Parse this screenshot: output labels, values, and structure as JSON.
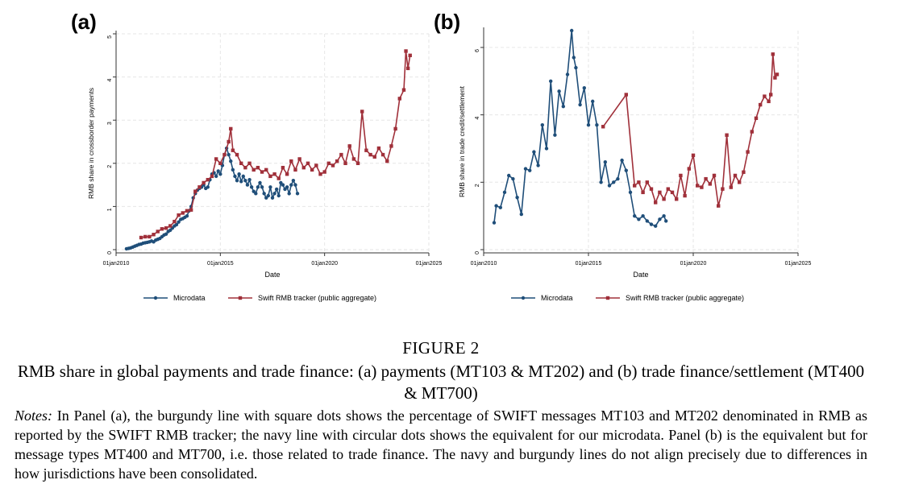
{
  "colors": {
    "microdata": "#1f4e79",
    "swift": "#a0303a"
  },
  "legend": {
    "microdata": "Microdata",
    "swift": "Swift RMB tracker (public aggregate)"
  },
  "x_axis": {
    "label": "Date",
    "ticks": [
      "01jan2010",
      "01jan2015",
      "01jan2020",
      "01jan2025"
    ]
  },
  "caption": {
    "figure_number": "FIGURE 2",
    "title": "RMB share in global payments and trade finance: (a) payments (MT103 & MT202) and (b) trade finance/settlement (MT400 & MT700)",
    "notes_label": "Notes:",
    "notes_text": " In Panel (a), the burgundy line with square dots shows the percentage of SWIFT messages MT103 and MT202 denominated in RMB as reported by the SWIFT RMB tracker; the navy line with circular dots shows the equivalent for our microdata. Panel (b) is the equivalent but for message types MT400 and MT700, i.e. those related to trade finance. The navy and burgundy lines do not align precisely due to differences in how jurisdictions have been consolidated."
  },
  "chart_data": [
    {
      "panel": "(a)",
      "type": "line",
      "xlabel": "Date",
      "ylabel": "RMB share in crossborder payments",
      "xlim": [
        2010,
        2025
      ],
      "ylim": [
        0,
        5
      ],
      "yticks": [
        0,
        1,
        2,
        3,
        4,
        5
      ],
      "xticks": [
        "01jan2010",
        "01jan2015",
        "01jan2020",
        "01jan2025"
      ],
      "grid": true,
      "legend_position": "bottom",
      "series": [
        {
          "name": "Microdata",
          "marker": "circle",
          "x": [
            2010.5,
            2010.6,
            2010.7,
            2010.8,
            2010.9,
            2011.0,
            2011.1,
            2011.2,
            2011.3,
            2011.4,
            2011.5,
            2011.6,
            2011.7,
            2011.8,
            2011.9,
            2012.0,
            2012.1,
            2012.2,
            2012.3,
            2012.4,
            2012.5,
            2012.6,
            2012.7,
            2012.8,
            2012.9,
            2013.0,
            2013.1,
            2013.2,
            2013.3,
            2013.4,
            2013.5,
            2013.6,
            2013.7,
            2013.8,
            2013.9,
            2014.0,
            2014.1,
            2014.2,
            2014.3,
            2014.4,
            2014.5,
            2014.6,
            2014.7,
            2014.8,
            2014.9,
            2015.0,
            2015.1,
            2015.2,
            2015.3,
            2015.4,
            2015.5,
            2015.6,
            2015.7,
            2015.8,
            2015.9,
            2016.0,
            2016.1,
            2016.2,
            2016.3,
            2016.4,
            2016.5,
            2016.6,
            2016.7,
            2016.8,
            2016.9,
            2017.0,
            2017.1,
            2017.2,
            2017.3,
            2017.4,
            2017.5,
            2017.6,
            2017.7,
            2017.8,
            2017.9,
            2018.0,
            2018.1,
            2018.2,
            2018.3,
            2018.4,
            2018.5,
            2018.6,
            2018.7
          ],
          "values": [
            0.02,
            0.03,
            0.04,
            0.06,
            0.08,
            0.1,
            0.12,
            0.13,
            0.15,
            0.16,
            0.17,
            0.18,
            0.2,
            0.18,
            0.22,
            0.24,
            0.26,
            0.3,
            0.34,
            0.36,
            0.42,
            0.45,
            0.5,
            0.55,
            0.58,
            0.64,
            0.7,
            0.72,
            0.75,
            0.78,
            0.9,
            1.0,
            1.2,
            1.3,
            1.38,
            1.42,
            1.45,
            1.5,
            1.42,
            1.45,
            1.62,
            1.75,
            1.78,
            1.7,
            1.82,
            1.75,
            1.95,
            2.2,
            2.35,
            2.2,
            2.05,
            1.85,
            1.7,
            1.6,
            1.75,
            1.58,
            1.7,
            1.6,
            1.5,
            1.62,
            1.45,
            1.35,
            1.3,
            1.45,
            1.55,
            1.45,
            1.3,
            1.2,
            1.25,
            1.45,
            1.2,
            1.3,
            1.4,
            1.25,
            1.55,
            1.5,
            1.4,
            1.45,
            1.3,
            1.5,
            1.6,
            1.5,
            1.3
          ]
        },
        {
          "name": "Swift RMB tracker (public aggregate)",
          "marker": "square",
          "x": [
            2011.2,
            2011.4,
            2011.6,
            2011.8,
            2012.0,
            2012.2,
            2012.4,
            2012.6,
            2012.8,
            2013.0,
            2013.2,
            2013.4,
            2013.6,
            2013.8,
            2014.0,
            2014.2,
            2014.4,
            2014.6,
            2014.8,
            2015.0,
            2015.2,
            2015.4,
            2015.5,
            2015.6,
            2015.8,
            2016.0,
            2016.2,
            2016.4,
            2016.6,
            2016.8,
            2017.0,
            2017.2,
            2017.4,
            2017.6,
            2017.8,
            2018.0,
            2018.2,
            2018.4,
            2018.6,
            2018.8,
            2019.0,
            2019.2,
            2019.4,
            2019.6,
            2019.8,
            2020.0,
            2020.2,
            2020.4,
            2020.6,
            2020.8,
            2021.0,
            2021.2,
            2021.4,
            2021.6,
            2021.8,
            2022.0,
            2022.2,
            2022.4,
            2022.6,
            2022.8,
            2023.0,
            2023.2,
            2023.4,
            2023.6,
            2023.8,
            2023.9,
            2024.0,
            2024.1
          ],
          "values": [
            0.28,
            0.3,
            0.3,
            0.35,
            0.42,
            0.48,
            0.5,
            0.55,
            0.65,
            0.8,
            0.85,
            0.9,
            0.92,
            1.35,
            1.45,
            1.55,
            1.62,
            1.7,
            2.1,
            2.0,
            2.2,
            2.5,
            2.8,
            2.3,
            2.2,
            2.0,
            1.9,
            2.0,
            1.85,
            1.9,
            1.8,
            1.85,
            1.7,
            1.75,
            1.65,
            1.9,
            1.75,
            2.05,
            1.85,
            2.1,
            1.9,
            2.0,
            1.85,
            1.95,
            1.75,
            1.8,
            2.0,
            1.95,
            2.05,
            2.2,
            2.0,
            2.4,
            2.1,
            2.0,
            3.2,
            2.3,
            2.2,
            2.15,
            2.35,
            2.2,
            2.05,
            2.4,
            2.8,
            3.5,
            3.7,
            4.6,
            4.2,
            4.5
          ]
        }
      ]
    },
    {
      "panel": "(b)",
      "type": "line",
      "xlabel": "Date",
      "ylabel": "RMB share in trade credit/settlement",
      "xlim": [
        2010,
        2025
      ],
      "ylim": [
        0,
        6.5
      ],
      "yticks": [
        0,
        2,
        4,
        6
      ],
      "xticks": [
        "01jan2010",
        "01jan2015",
        "01jan2020",
        "01jan2025"
      ],
      "grid": true,
      "legend_position": "bottom",
      "series": [
        {
          "name": "Microdata",
          "marker": "circle",
          "x": [
            2010.5,
            2010.6,
            2010.8,
            2011.0,
            2011.2,
            2011.4,
            2011.6,
            2011.8,
            2012.0,
            2012.2,
            2012.4,
            2012.6,
            2012.8,
            2013.0,
            2013.2,
            2013.4,
            2013.6,
            2013.8,
            2014.0,
            2014.2,
            2014.3,
            2014.4,
            2014.6,
            2014.8,
            2015.0,
            2015.2,
            2015.4,
            2015.6,
            2015.8,
            2016.0,
            2016.2,
            2016.4,
            2016.6,
            2016.8,
            2017.0,
            2017.2,
            2017.4,
            2017.6,
            2017.8,
            2018.0,
            2018.2,
            2018.4,
            2018.6,
            2018.7
          ],
          "values": [
            0.8,
            1.3,
            1.25,
            1.7,
            2.2,
            2.1,
            1.55,
            1.05,
            2.4,
            2.35,
            2.9,
            2.5,
            3.7,
            3.0,
            5.0,
            3.4,
            4.7,
            4.25,
            5.2,
            6.5,
            5.7,
            5.4,
            4.3,
            4.8,
            3.7,
            4.4,
            3.7,
            2.0,
            2.6,
            1.9,
            2.0,
            2.1,
            2.65,
            2.35,
            1.7,
            1.0,
            0.9,
            1.0,
            0.85,
            0.75,
            0.7,
            0.9,
            1.0,
            0.85
          ]
        },
        {
          "name": "Swift RMB tracker (public aggregate)",
          "marker": "square",
          "x": [
            2015.7,
            2016.8,
            2017.2,
            2017.4,
            2017.6,
            2017.8,
            2018.0,
            2018.2,
            2018.4,
            2018.6,
            2018.8,
            2019.0,
            2019.2,
            2019.4,
            2019.6,
            2019.8,
            2020.0,
            2020.2,
            2020.4,
            2020.6,
            2020.8,
            2021.0,
            2021.2,
            2021.4,
            2021.6,
            2021.8,
            2022.0,
            2022.2,
            2022.4,
            2022.6,
            2022.8,
            2023.0,
            2023.2,
            2023.4,
            2023.6,
            2023.7,
            2023.8,
            2023.9,
            2024.0
          ],
          "values": [
            3.65,
            4.6,
            1.9,
            2.0,
            1.7,
            2.0,
            1.8,
            1.4,
            1.7,
            1.5,
            1.8,
            1.7,
            1.5,
            2.2,
            1.6,
            2.4,
            2.8,
            1.9,
            1.85,
            2.1,
            1.95,
            2.2,
            1.3,
            1.8,
            3.4,
            1.85,
            2.2,
            2.0,
            2.3,
            2.9,
            3.5,
            3.9,
            4.3,
            4.55,
            4.4,
            4.6,
            5.8,
            5.1,
            5.2
          ]
        }
      ]
    }
  ]
}
